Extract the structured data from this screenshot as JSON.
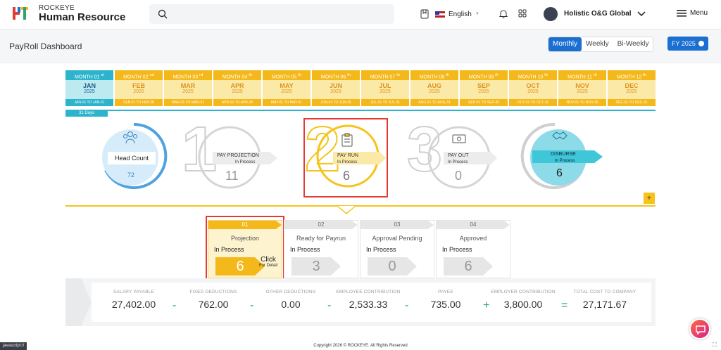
{
  "brand": {
    "line1": "ROCKEYE",
    "line2": "Human Resource"
  },
  "header": {
    "language": "English",
    "user": "Holistic O&G Global",
    "menu": "Menu"
  },
  "page": {
    "title": "PayRoll Dashboard"
  },
  "period": {
    "options": [
      "Monthly",
      "Weekly",
      "Bi-Weekly"
    ],
    "selected": "Monthly",
    "fy": "FY 2025"
  },
  "months": [
    {
      "head": "MONTH 01",
      "sup": "st",
      "name": "JAN",
      "year": "2025",
      "range": "JAN-01 TO JAN-31"
    },
    {
      "head": "MONTH 02",
      "sup": "nd",
      "name": "FEB",
      "year": "2025",
      "range": "FEB-01 TO FEB-28"
    },
    {
      "head": "MONTH 03",
      "sup": "rd",
      "name": "MAR",
      "year": "2025",
      "range": "MAR-01 TO MAR-31"
    },
    {
      "head": "MONTH 04",
      "sup": "th",
      "name": "APR",
      "year": "2025",
      "range": "APR-01 TO APR-30"
    },
    {
      "head": "MONTH 05",
      "sup": "th",
      "name": "MAY",
      "year": "2025",
      "range": "MAY-01 TO MAY-31"
    },
    {
      "head": "MONTH 06",
      "sup": "th",
      "name": "JUN",
      "year": "2025",
      "range": "JUN-01 TO JUN-30"
    },
    {
      "head": "MONTH 07",
      "sup": "th",
      "name": "JUL",
      "year": "2025",
      "range": "JUL-01 TO JUL-31"
    },
    {
      "head": "MONTH 08",
      "sup": "th",
      "name": "AUG",
      "year": "2025",
      "range": "AUG-01 TO AUG-31"
    },
    {
      "head": "MONTH 09",
      "sup": "th",
      "name": "SEP",
      "year": "2025",
      "range": "SEP-01 TO SEP-30"
    },
    {
      "head": "MONTH 10",
      "sup": "th",
      "name": "OCT",
      "year": "2025",
      "range": "OCT-01 TO OCT-31"
    },
    {
      "head": "MONTH 11",
      "sup": "th",
      "name": "NOV",
      "year": "2025",
      "range": "NOV-01 TO NOV-30"
    },
    {
      "head": "MONTH 12",
      "sup": "th",
      "name": "DEC",
      "year": "2025",
      "range": "DEC-01 TO DEC-31"
    }
  ],
  "current_month_days": "31 Days",
  "stages": {
    "headcount": {
      "label": "Head Count",
      "value": "72"
    },
    "projection": {
      "number": "1",
      "label": "PAY PROJECTION",
      "status": "In Process",
      "value": "11"
    },
    "payrun": {
      "number": "2",
      "label": "PAY RUN",
      "status": "In Process",
      "value": "6"
    },
    "payout": {
      "number": "3",
      "label": "PAY OUT",
      "status": "In Process",
      "value": "0"
    },
    "disburse": {
      "label": "DISBURSE",
      "status": "In Process",
      "value": "6"
    }
  },
  "steps": [
    {
      "num": "01",
      "title": "Projection",
      "status": "In Process",
      "value": "6",
      "click": "Click",
      "click_sub": "For Detail"
    },
    {
      "num": "02",
      "title": "Ready for Payrun",
      "status": "In Process",
      "value": "3"
    },
    {
      "num": "03",
      "title": "Approval Pending",
      "status": "In Process",
      "value": "0"
    },
    {
      "num": "04",
      "title": "Approved",
      "status": "In Process",
      "value": "6"
    }
  ],
  "summary": [
    {
      "label": "SALARY PAYABLE",
      "value": "27,402.00"
    },
    {
      "label": "FIXED DEDUCTIONS",
      "value": "762.00"
    },
    {
      "label": "OTHER DEDUCTIONS",
      "value": "0.00"
    },
    {
      "label": "EMPLOYEE CONTRIBUTION",
      "value": "2,533.33"
    },
    {
      "label": "PAYEE",
      "value": "735.00"
    },
    {
      "label": "EMPLOYER CONTRIBUTION",
      "value": "3,800.00"
    },
    {
      "label": "TOTAL COST TO COMPANY",
      "value": "27,171.67"
    }
  ],
  "operators": [
    "-",
    "-",
    "-",
    "-",
    "+",
    "="
  ],
  "footer": "Copyright 2026 © ROCKEYE. All Rights Reserved",
  "status_url": "javascript://"
}
